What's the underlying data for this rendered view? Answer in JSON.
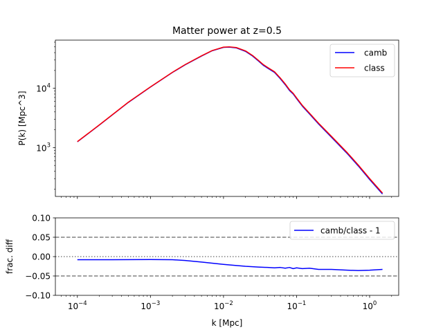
{
  "chart_data": [
    {
      "type": "line",
      "panel": "top",
      "title": "Matter power at z=0.5",
      "ylabel": "P(k) [Mpc^3]",
      "xlabel": "",
      "xscale": "log",
      "yscale": "log",
      "xlim": [
        5e-05,
        2.5
      ],
      "ylim": [
        150,
        65000
      ],
      "yticks": [
        {
          "value": 1000,
          "base": "10",
          "exp": "3"
        },
        {
          "value": 10000,
          "base": "10",
          "exp": "4"
        }
      ],
      "legend_position": "top-right",
      "grid": false,
      "series": [
        {
          "name": "camb",
          "color": "#0000ff",
          "x": [
            0.0001,
            0.0002,
            0.0005,
            0.001,
            0.002,
            0.003,
            0.005,
            0.007,
            0.01,
            0.012,
            0.015,
            0.02,
            0.025,
            0.03,
            0.035,
            0.04,
            0.05,
            0.06,
            0.07,
            0.08,
            0.09,
            0.1,
            0.12,
            0.15,
            0.2,
            0.3,
            0.5,
            0.7,
            1.0,
            1.5
          ],
          "y": [
            1250,
            2400,
            5800,
            10500,
            18500,
            25000,
            35000,
            43000,
            49000,
            49500,
            48000,
            42000,
            35000,
            29000,
            24500,
            22000,
            18500,
            14500,
            11500,
            9200,
            8000,
            6700,
            5000,
            3700,
            2500,
            1500,
            780,
            490,
            290,
            165
          ]
        },
        {
          "name": "class",
          "color": "#ff0000",
          "x": [
            0.0001,
            0.0002,
            0.0005,
            0.001,
            0.002,
            0.003,
            0.005,
            0.007,
            0.01,
            0.012,
            0.015,
            0.02,
            0.025,
            0.03,
            0.035,
            0.04,
            0.05,
            0.06,
            0.07,
            0.08,
            0.09,
            0.1,
            0.12,
            0.15,
            0.2,
            0.3,
            0.5,
            0.7,
            1.0,
            1.5
          ],
          "y": [
            1260,
            2420,
            5850,
            10580,
            18650,
            25200,
            35300,
            43400,
            49500,
            50100,
            48700,
            42800,
            35800,
            29700,
            25200,
            22600,
            19000,
            14900,
            11850,
            9480,
            8240,
            6900,
            5150,
            3815,
            2580,
            1550,
            808,
            508,
            301,
            171
          ]
        }
      ]
    },
    {
      "type": "line",
      "panel": "bottom",
      "title": "",
      "xlabel": "k [Mpc]",
      "ylabel": "frac. diff",
      "xscale": "log",
      "xlim": [
        5e-05,
        2.5
      ],
      "ylim": [
        -0.1,
        0.1
      ],
      "yticks": [
        {
          "value": 0.1,
          "label": "0.10"
        },
        {
          "value": 0.05,
          "label": "0.05"
        },
        {
          "value": 0.0,
          "label": "0.00"
        },
        {
          "value": -0.05,
          "label": "−0.05"
        },
        {
          "value": -0.1,
          "label": "−0.10"
        }
      ],
      "xticks": [
        {
          "value": 0.0001,
          "base": "10",
          "exp": "−4"
        },
        {
          "value": 0.001,
          "base": "10",
          "exp": "−3"
        },
        {
          "value": 0.01,
          "base": "10",
          "exp": "−2"
        },
        {
          "value": 0.1,
          "base": "10",
          "exp": "−1"
        },
        {
          "value": 1,
          "base": "10",
          "exp": "0"
        }
      ],
      "reference_lines": [
        {
          "y": 0.05,
          "style": "dashed",
          "color": "#808080"
        },
        {
          "y": -0.05,
          "style": "dashed",
          "color": "#808080"
        },
        {
          "y": 0.0,
          "style": "dotted",
          "color": "#808080"
        }
      ],
      "legend_position": "top-right",
      "grid": false,
      "series": [
        {
          "name": "camb/class - 1",
          "color": "#0000ff",
          "x": [
            0.0001,
            0.0003,
            0.001,
            0.002,
            0.003,
            0.005,
            0.007,
            0.01,
            0.015,
            0.02,
            0.03,
            0.04,
            0.05,
            0.06,
            0.07,
            0.08,
            0.09,
            0.1,
            0.12,
            0.15,
            0.2,
            0.3,
            0.5,
            0.7,
            1.0,
            1.5
          ],
          "y": [
            -0.008,
            -0.008,
            -0.0075,
            -0.008,
            -0.01,
            -0.014,
            -0.017,
            -0.02,
            -0.023,
            -0.025,
            -0.027,
            -0.028,
            -0.029,
            -0.028,
            -0.03,
            -0.028,
            -0.031,
            -0.029,
            -0.031,
            -0.03,
            -0.033,
            -0.033,
            -0.035,
            -0.036,
            -0.035,
            -0.033
          ]
        }
      ]
    }
  ]
}
